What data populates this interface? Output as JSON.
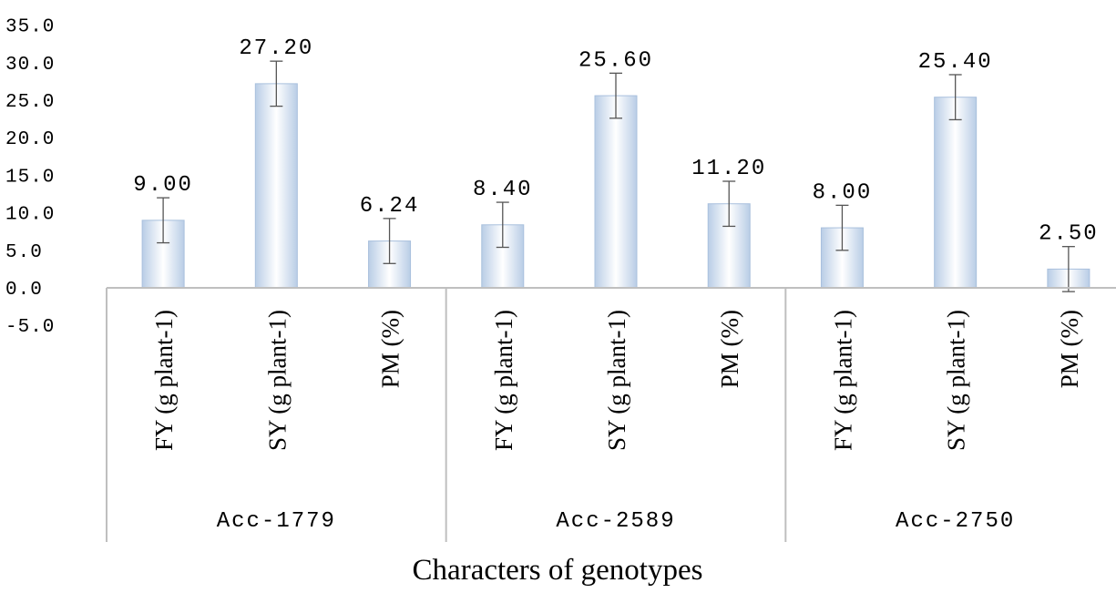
{
  "chart_data": {
    "type": "bar",
    "title": "",
    "xlabel": "Characters of genotypes",
    "ylabel": "",
    "ylim": [
      -5,
      35
    ],
    "yticks": [
      "35.0",
      "30.0",
      "25.0",
      "20.0",
      "15.0",
      "10.0",
      "5.0",
      "0.0",
      "-5.0"
    ],
    "grid": false,
    "groups": [
      {
        "name": "Acc-1779",
        "categories": [
          "FY (g plant-1)",
          "SY (g plant-1)",
          "PM (%)"
        ],
        "values": [
          9.0,
          27.2,
          6.24
        ],
        "labels": [
          "9.00",
          "27.20",
          "6.24"
        ],
        "errors": [
          3.0,
          3.0,
          3.0
        ]
      },
      {
        "name": "Acc-2589",
        "categories": [
          "FY (g plant-1)",
          "SY (g plant-1)",
          "PM (%)"
        ],
        "values": [
          8.4,
          25.6,
          11.2
        ],
        "labels": [
          "8.40",
          "25.60",
          "11.20"
        ],
        "errors": [
          3.0,
          3.0,
          3.0
        ]
      },
      {
        "name": "Acc-2750",
        "categories": [
          "FY (g plant-1)",
          "SY (g plant-1)",
          "PM (%)"
        ],
        "values": [
          8.0,
          25.4,
          2.5
        ],
        "labels": [
          "8.00",
          "25.40",
          "2.50"
        ],
        "errors": [
          3.0,
          3.0,
          3.0
        ]
      }
    ]
  },
  "colors": {
    "bar_edge": "#a9c0dd",
    "bar_center": "#ffffff",
    "bar_side": "#b9cde6",
    "axis": "#bfbfbf"
  }
}
